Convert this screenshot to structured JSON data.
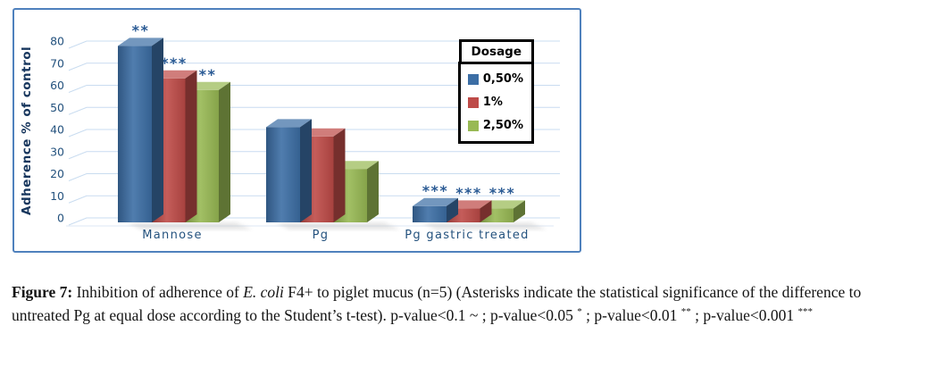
{
  "chart_data": {
    "type": "bar",
    "style": "3d-clustered-column",
    "title": "",
    "categories": [
      "Mannose",
      "Pg",
      "Pg gastric treated"
    ],
    "series": [
      {
        "name": "0,50%",
        "color": "#3c6ea5",
        "values": [
          76,
          41,
          7
        ],
        "significance": [
          "**",
          "",
          "***"
        ]
      },
      {
        "name": "1%",
        "color": "#be4b48",
        "values": [
          62,
          37,
          6
        ],
        "significance": [
          "***",
          "",
          "***"
        ]
      },
      {
        "name": "2,50%",
        "color": "#98b954",
        "values": [
          57,
          23,
          6
        ],
        "significance": [
          "**",
          "",
          "***"
        ]
      }
    ],
    "xlabel": "",
    "ylabel": "Adherence % of control",
    "ylim": [
      0,
      80
    ],
    "ytick_step": 10,
    "grid": true,
    "legend_title": "Dosage",
    "legend_position": "inside-top-right",
    "colors": {
      "frame_border": "#4f81bd",
      "gridline": "#c9dcf0",
      "floor_line": "#dde7f4",
      "axis_text": "#24527e",
      "ylabel_text": "#17365d",
      "significance": "#2a5a94",
      "legend_border": "#000000"
    }
  },
  "caption": {
    "parts": [
      {
        "text": "Figure 7:"
      },
      {
        "text": " Inhibition of adherence of "
      },
      {
        "text": "E. coli"
      },
      {
        "text": " F4+ to piglet mucus (n=5) (Asterisks indicate the statistical significance of the difference to untreated Pg at equal dose according to the Student’s t-test). p-value<0.1 ~ ; p-value<0.05 "
      },
      {
        "text": "*"
      },
      {
        "text": " ; p-value<0.01 "
      },
      {
        "text": "**"
      },
      {
        "text": " ; p-value<0.001 "
      },
      {
        "text": "***"
      }
    ]
  }
}
